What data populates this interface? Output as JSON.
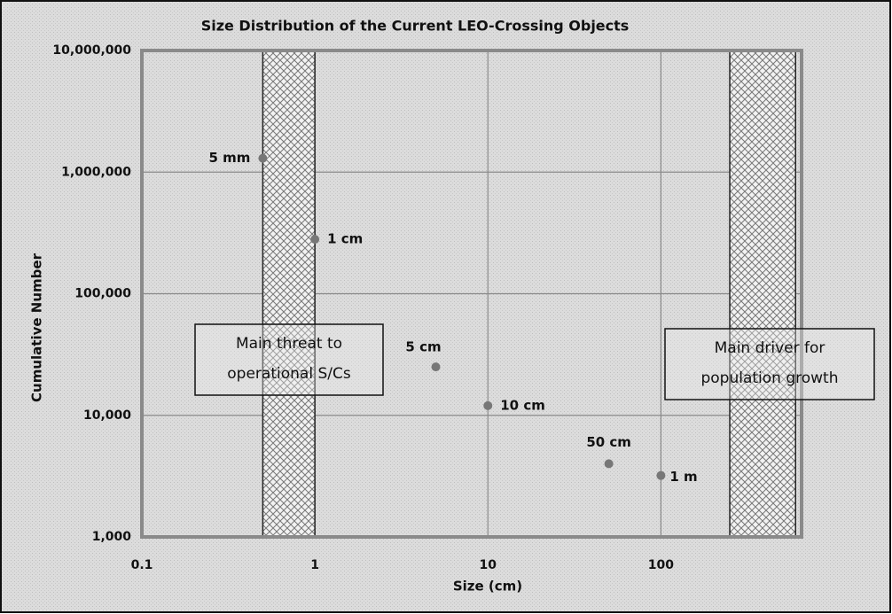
{
  "chart_data": {
    "type": "scatter",
    "title": "Size Distribution of the Current LEO-Crossing Objects",
    "x_label": "Size (cm)",
    "y_label": "Cumulative Number",
    "x": [
      0.5,
      1,
      5,
      10,
      50,
      100
    ],
    "values": [
      1300000,
      280000,
      25000,
      12000,
      4000,
      3200
    ],
    "point_labels": [
      "5 mm",
      "1 cm",
      "5 cm",
      "10 cm",
      "50 cm",
      "1 m"
    ],
    "color": "#777777",
    "xlog": true,
    "ylog": true,
    "xlim": [
      0.1,
      650
    ],
    "ylim": [
      1000,
      10000000
    ],
    "xticks": [
      0.1,
      1,
      10,
      100
    ],
    "yticks": [
      {
        "value": 1000,
        "label": "1,000"
      },
      {
        "value": 10000,
        "label": "10,000"
      },
      {
        "value": 100000,
        "label": "100,000"
      },
      {
        "value": 1000000,
        "label": "1,000,000"
      },
      {
        "value": 10000000,
        "label": "10,000,000"
      }
    ],
    "grid": true,
    "bands": [
      [
        0.5,
        1
      ],
      [
        250,
        600
      ]
    ],
    "annotations": [
      {
        "lines": [
          "Main threat to",
          "operational S/Cs"
        ]
      },
      {
        "lines": [
          "Main driver for",
          "population growth"
        ]
      }
    ]
  }
}
